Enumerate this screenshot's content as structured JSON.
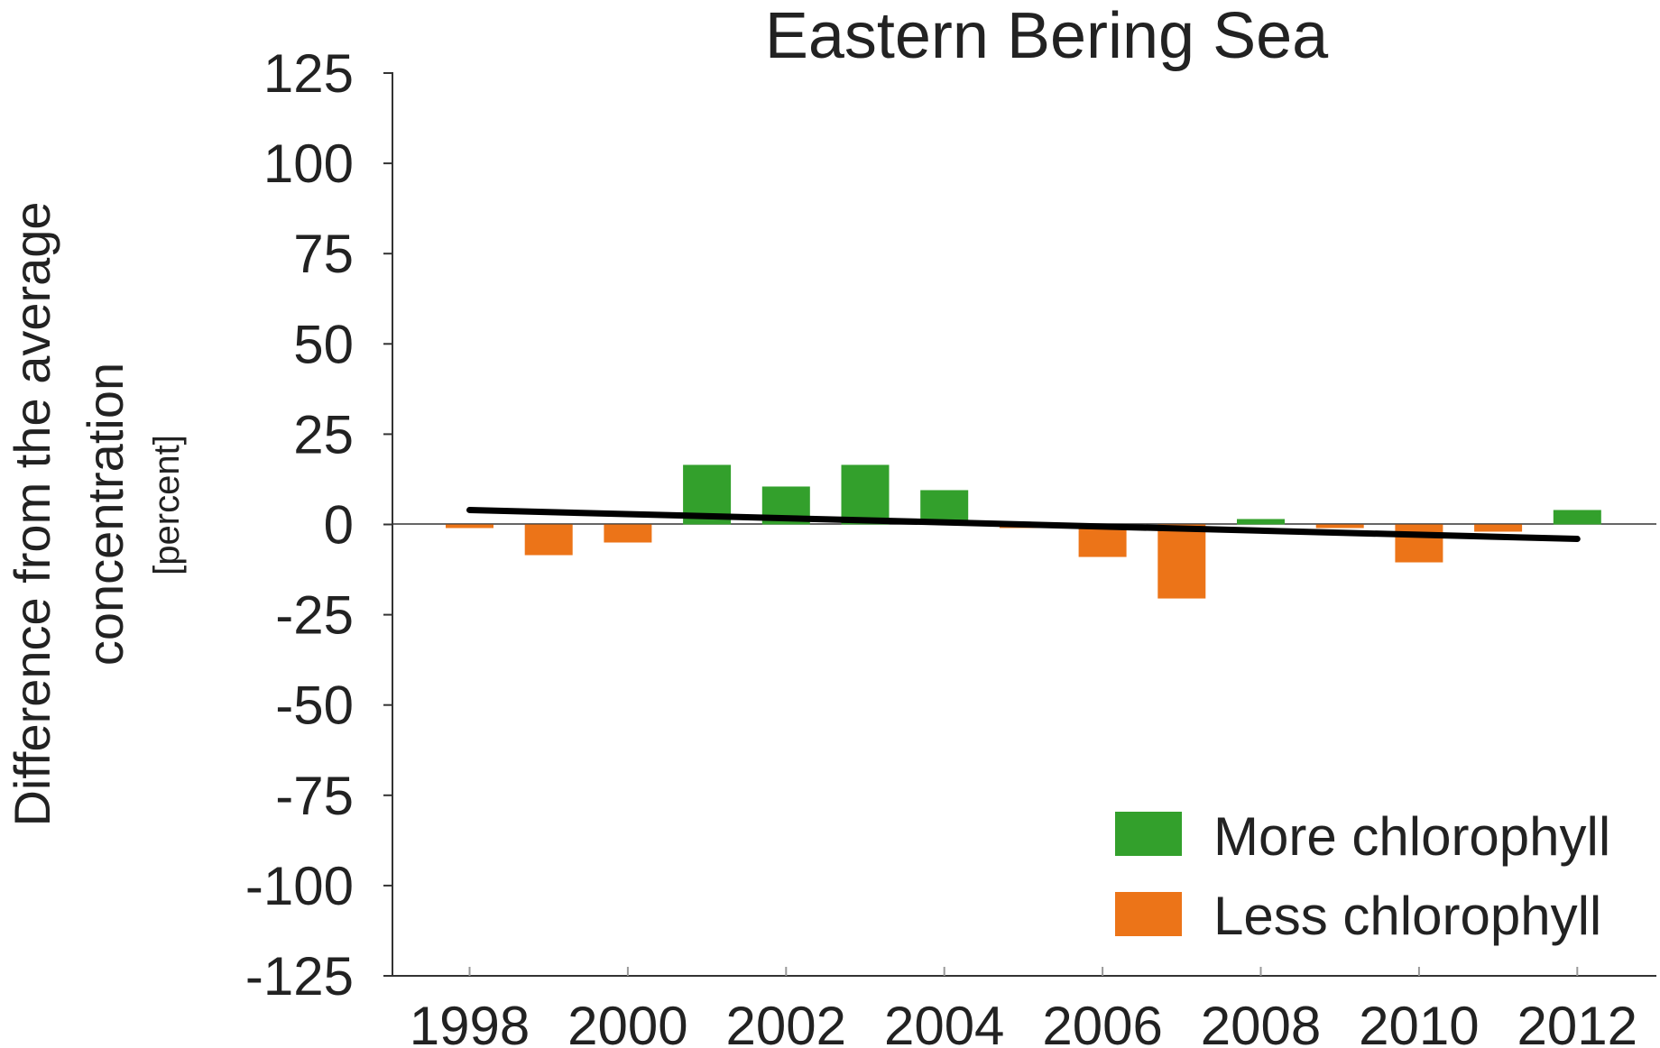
{
  "chart_data": {
    "type": "bar",
    "title": "Eastern Bering Sea",
    "ylabel": "Difference from the average concentration",
    "yunit": "[percent]",
    "ylim": [
      -125,
      125
    ],
    "yticks": [
      125,
      100,
      75,
      50,
      25,
      0,
      -25,
      -50,
      -75,
      -100,
      -125
    ],
    "xticks": [
      "1998",
      "2000",
      "2002",
      "2004",
      "2006",
      "2008",
      "2010",
      "2012"
    ],
    "x": [
      1998,
      1999,
      2000,
      2001,
      2002,
      2003,
      2004,
      2005,
      2006,
      2007,
      2008,
      2009,
      2010,
      2011,
      2012
    ],
    "values": [
      -1,
      -8.5,
      -5,
      16.5,
      10.5,
      16.5,
      9.5,
      -1,
      -9,
      -20.5,
      1.5,
      -1,
      -10.5,
      -2,
      4
    ],
    "trendline": {
      "start": [
        1998,
        4
      ],
      "end": [
        2012,
        -4
      ],
      "color": "#000000"
    },
    "legend": [
      {
        "label": "More chlorophyll",
        "color": "#33a02c"
      },
      {
        "label": "Less chlorophyll",
        "color": "#ec7418"
      }
    ],
    "legend_position": "bottom-right",
    "colors": {
      "positive": "#33a02c",
      "negative": "#ec7418"
    },
    "grid": false
  }
}
